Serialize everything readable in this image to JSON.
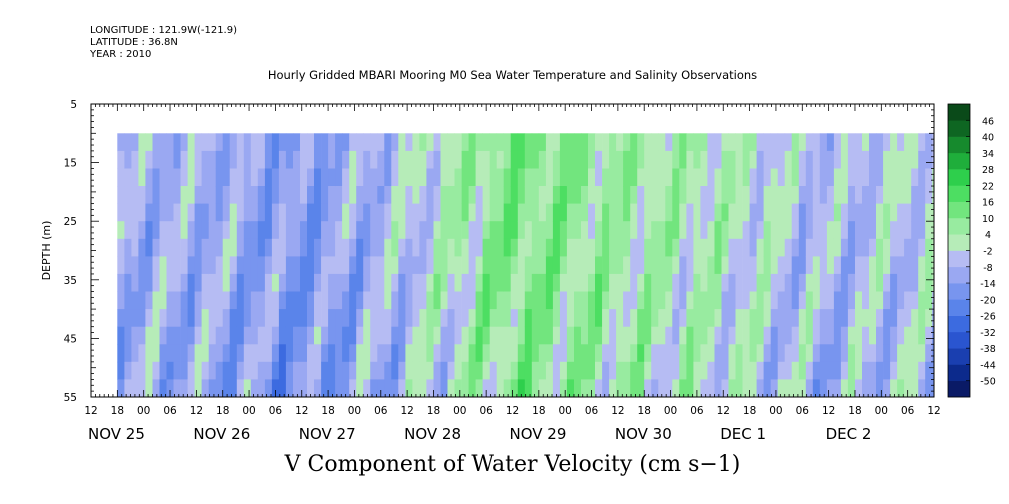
{
  "meta": {
    "longitude": "LONGITUDE : 121.9W(-121.9)",
    "latitude": "LATITUDE : 36.8N",
    "year": "YEAR : 2010"
  },
  "title": "Hourly Gridded MBARI Mooring M0 Sea Water Temperature and Salinity Observations",
  "caption": "V Component of Water Velocity (cm s−1)",
  "chart_data": {
    "type": "heatmap",
    "title": "Hourly Gridded MBARI Mooring M0 Sea Water Temperature and Salinity Observations",
    "xlabel": "",
    "ylabel": "DEPTH (m)",
    "colorbar_label": "V Component of Water Velocity (cm s−1)",
    "y_axis": {
      "range": [
        5,
        55
      ],
      "inverted": true,
      "ticks": [
        5,
        15,
        25,
        35,
        45,
        55
      ],
      "tick_labels": [
        "5",
        "15",
        "25",
        "35",
        "45",
        "55"
      ],
      "data_range": [
        10,
        55
      ]
    },
    "x_axis": {
      "range_hours": [
        -12,
        180
      ],
      "data_start_hour": -6,
      "hour_labels": [
        "12",
        "18",
        "00",
        "06",
        "12",
        "18",
        "00",
        "06",
        "12",
        "18",
        "00",
        "06",
        "12",
        "18",
        "00",
        "06",
        "12",
        "18",
        "00",
        "06",
        "12",
        "18",
        "00",
        "06",
        "12",
        "18",
        "00",
        "06",
        "12",
        "18",
        "00",
        "06",
        "12"
      ],
      "day_labels": [
        "NOV 25",
        "NOV 26",
        "NOV 27",
        "NOV 28",
        "NOV 29",
        "NOV 30",
        "DEC  1",
        "DEC  2"
      ]
    },
    "colorbar": {
      "levels": [
        -50,
        -44,
        -38,
        -32,
        -26,
        -20,
        -14,
        -8,
        -2,
        4,
        10,
        16,
        22,
        28,
        34,
        40,
        46
      ],
      "tick_labels": [
        "46",
        "40",
        "34",
        "28",
        "22",
        "16",
        "10",
        "4",
        "-2",
        "-8",
        "-14",
        "-20",
        "-26",
        "-32",
        "-38",
        "-44",
        "-50"
      ],
      "colors": [
        "#0a1a66",
        "#0c2a8c",
        "#1a3fb0",
        "#2a55d0",
        "#3c6be0",
        "#5a84ea",
        "#7895ef",
        "#9aa8f2",
        "#b6bcf3",
        "#b6ecb8",
        "#98eba0",
        "#72e57e",
        "#4dde62",
        "#2ecf4c",
        "#1fae3b",
        "#168a2d",
        "#0e6622",
        "#0a4a19"
      ]
    },
    "v_by_day_estimate": [
      {
        "day": "NOV 25",
        "v": -8
      },
      {
        "day": "NOV 26",
        "v": -14
      },
      {
        "day": "NOV 27",
        "v": -4
      },
      {
        "day": "NOV 28",
        "v": 12
      },
      {
        "day": "NOV 29",
        "v": 6
      },
      {
        "day": "NOV 30",
        "v": 2
      },
      {
        "day": "DEC  1",
        "v": -6
      },
      {
        "day": "DEC  2",
        "v": -2
      }
    ]
  }
}
